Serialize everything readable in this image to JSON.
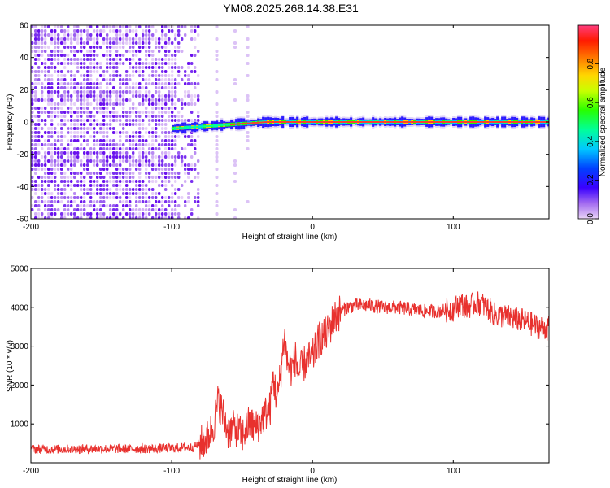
{
  "title": "YM08.2025.268.14.38.E31",
  "chart_data": [
    {
      "type": "heatmap",
      "xlabel": "Height of straight line (km)",
      "ylabel": "Frequency (Hz)",
      "xlim": [
        -200,
        168
      ],
      "ylim": [
        -60,
        60
      ],
      "x_ticks": [
        -200,
        -100,
        0,
        100
      ],
      "y_ticks": [
        -60,
        -40,
        -20,
        0,
        20,
        40,
        60
      ],
      "grid": false,
      "description_series": {
        "noise_band_x_range": [
          -200,
          -82
        ],
        "dominant_frequency_hz": 0,
        "signal_onset_km": -100,
        "faint_vertical_streaks_km": [
          -68,
          -55,
          -46
        ]
      },
      "colorbar": {
        "label": "Normalized spectral amplitude",
        "range": [
          0,
          1
        ],
        "ticks": [
          0.0,
          0.2,
          0.4,
          0.6,
          0.8
        ]
      }
    },
    {
      "type": "line",
      "xlabel": "Height of straight line (km)",
      "ylabel": "SNR (10 * v/v)",
      "xlim": [
        -200,
        168
      ],
      "ylim": [
        0,
        5000
      ],
      "x_ticks": [
        -200,
        -100,
        0,
        100
      ],
      "y_ticks": [
        1000,
        2000,
        3000,
        4000,
        5000
      ],
      "grid": false,
      "series": [
        {
          "name": "SNR",
          "color": "#e8312e",
          "x": [
            -200,
            -180,
            -160,
            -140,
            -120,
            -100,
            -85,
            -75,
            -70,
            -67,
            -64,
            -60,
            -55,
            -50,
            -45,
            -40,
            -35,
            -30,
            -28,
            -25,
            -22,
            -20,
            -18,
            -15,
            -12,
            -10,
            -5,
            0,
            5,
            10,
            15,
            20,
            25,
            30,
            40,
            50,
            60,
            70,
            80,
            90,
            100,
            105,
            110,
            115,
            120,
            130,
            140,
            150,
            160,
            168
          ],
          "y": [
            350,
            350,
            360,
            360,
            360,
            380,
            400,
            600,
            1000,
            1600,
            1300,
            800,
            900,
            700,
            1000,
            900,
            1200,
            1400,
            2200,
            1600,
            2500,
            3300,
            2600,
            2400,
            2700,
            2300,
            2600,
            2700,
            3200,
            3300,
            3700,
            3900,
            4000,
            4050,
            4050,
            4000,
            4000,
            3950,
            3900,
            3900,
            3950,
            4100,
            4000,
            4100,
            4100,
            3800,
            3750,
            3650,
            3500,
            3450
          ]
        }
      ]
    }
  ]
}
